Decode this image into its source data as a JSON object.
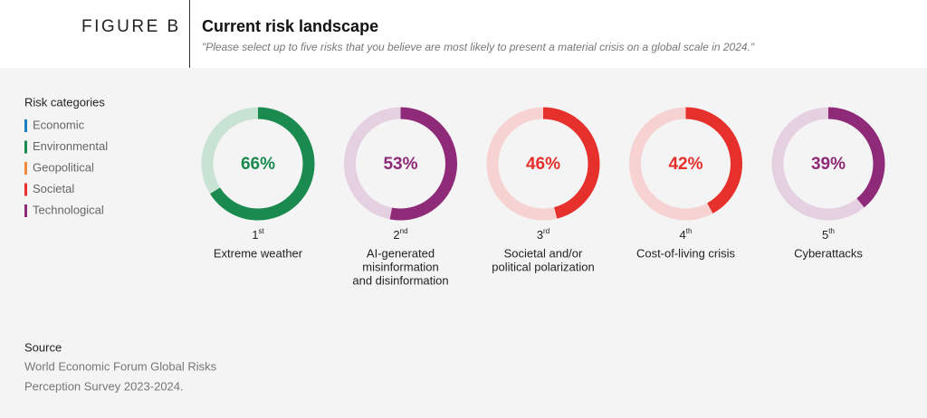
{
  "header": {
    "figure_label": "FIGURE B",
    "title": "Current risk landscape",
    "subtitle": "\"Please select up to five risks that you believe are most likely to present a material crisis on a global scale in 2024.\""
  },
  "legend": {
    "title": "Risk categories",
    "items": [
      {
        "name": "Economic",
        "color": "#1b7fc1"
      },
      {
        "name": "Environmental",
        "color": "#1a8a4f"
      },
      {
        "name": "Geopolitical",
        "color": "#f08a3c"
      },
      {
        "name": "Societal",
        "color": "#e5302c"
      },
      {
        "name": "Technological",
        "color": "#8e2a77"
      }
    ]
  },
  "chart_data": {
    "type": "donut",
    "categories": [
      [
        "Extreme weather"
      ],
      [
        "AI-generated",
        "misinformation",
        "and disinformation"
      ],
      [
        "Societal and/or",
        "political polarization"
      ],
      [
        "Cost-of-living crisis"
      ],
      [
        "Cyberattacks"
      ]
    ],
    "ranks": [
      1,
      2,
      3,
      4,
      5
    ],
    "rank_suffixes": [
      "st",
      "nd",
      "rd",
      "th",
      "th"
    ],
    "values": [
      66,
      53,
      46,
      42,
      39
    ],
    "value_labels": [
      "66%",
      "53%",
      "46%",
      "42%",
      "39%"
    ],
    "colors": [
      "#1a8a4f",
      "#8e2a77",
      "#e5302c",
      "#e5302c",
      "#8e2a77"
    ],
    "track_colors": [
      "#c8e2d4",
      "#e4d0e1",
      "#f6d3d2",
      "#f6d3d2",
      "#e4d0e1"
    ],
    "ylim": [
      0,
      100
    ]
  },
  "source": {
    "title": "Source",
    "lines": [
      "World Economic Forum Global Risks",
      "Perception Survey 2023-2024."
    ]
  }
}
